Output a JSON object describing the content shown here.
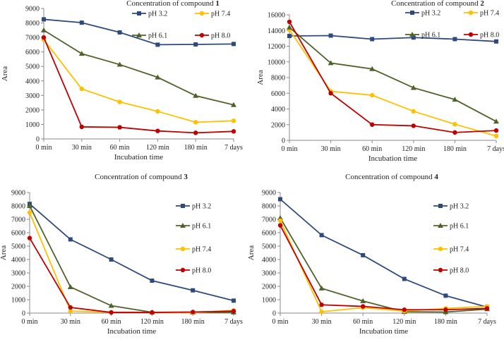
{
  "chart_data": [
    {
      "type": "line",
      "title": "Concentration of compound ",
      "title_bold": "1",
      "xlabel": "Incubation time",
      "ylabel": "Area",
      "categories": [
        "0 min",
        "30 min",
        "60 min",
        "120 min",
        "180 min",
        "7 days"
      ],
      "ylim": [
        0,
        9000
      ],
      "yticks": [
        0,
        1000,
        2000,
        3000,
        4000,
        5000,
        6000,
        7000,
        8000,
        9000
      ],
      "grid": false,
      "legend_placement": "top-right",
      "series": [
        {
          "name": "pH 3.2",
          "color": "#2e4a7d",
          "marker": "square",
          "values": [
            8250,
            8020,
            7350,
            6500,
            6520,
            6550
          ]
        },
        {
          "name": "pH 7.4",
          "color": "#ffc000",
          "marker": "circle",
          "values": [
            6850,
            3450,
            2550,
            1900,
            1150,
            1250
          ]
        },
        {
          "name": "pH 6.1",
          "color": "#4f6228",
          "marker": "triangle",
          "values": [
            7500,
            5880,
            5130,
            4250,
            2980,
            2350
          ]
        },
        {
          "name": "pH 8.0",
          "color": "#c00000",
          "marker": "circle",
          "values": [
            7000,
            830,
            800,
            550,
            420,
            520
          ]
        }
      ]
    },
    {
      "type": "line",
      "title": "Concentration of compound ",
      "title_bold": "2",
      "xlabel": "Incubation time",
      "ylabel": "Area",
      "categories": [
        "0 min",
        "30 min",
        "60 min",
        "120 min",
        "180 min",
        "7 days"
      ],
      "ylim": [
        0,
        16000
      ],
      "yticks": [
        0,
        2000,
        4000,
        6000,
        8000,
        10000,
        12000,
        14000,
        16000
      ],
      "grid": false,
      "legend_placement": "top-right",
      "series": [
        {
          "name": "pH 3.2",
          "color": "#2e4a7d",
          "marker": "square",
          "values": [
            13300,
            13350,
            12900,
            13100,
            12900,
            12600
          ]
        },
        {
          "name": "pH 7.4",
          "color": "#ffc000",
          "marker": "circle",
          "values": [
            14100,
            6250,
            5750,
            3700,
            2050,
            550
          ]
        },
        {
          "name": "pH 6.1",
          "color": "#4f6228",
          "marker": "triangle",
          "values": [
            14400,
            9850,
            9100,
            6700,
            5200,
            2400
          ]
        },
        {
          "name": "pH 8.0",
          "color": "#c00000",
          "marker": "circle",
          "values": [
            15100,
            6000,
            2000,
            1850,
            1000,
            1250
          ]
        }
      ]
    },
    {
      "type": "line",
      "title": "Concentration of compound ",
      "title_bold": "3",
      "xlabel": "Incubation time",
      "ylabel": "Area",
      "categories": [
        "0 min",
        "30 min",
        "60 min",
        "120 min",
        "180 min",
        "7 days"
      ],
      "ylim": [
        0,
        9000
      ],
      "yticks": [
        0,
        1000,
        2000,
        3000,
        4000,
        5000,
        6000,
        7000,
        8000,
        9000
      ],
      "grid": false,
      "legend_placement": "right",
      "series": [
        {
          "name": "pH 3.2",
          "color": "#2e4a7d",
          "marker": "square",
          "values": [
            8150,
            5500,
            4000,
            2420,
            1700,
            930
          ]
        },
        {
          "name": "pH 6.1",
          "color": "#4f6228",
          "marker": "triangle",
          "values": [
            8000,
            1950,
            550,
            60,
            50,
            60
          ]
        },
        {
          "name": "pH 7.4",
          "color": "#ffc000",
          "marker": "circle",
          "values": [
            7500,
            150,
            60,
            40,
            30,
            200
          ]
        },
        {
          "name": "pH 8.0",
          "color": "#c00000",
          "marker": "circle",
          "values": [
            5600,
            420,
            50,
            50,
            80,
            150
          ]
        }
      ]
    },
    {
      "type": "line",
      "title": "Concentration of compound ",
      "title_bold": "4",
      "xlabel": "Incubation time",
      "ylabel": "Area",
      "categories": [
        "0 min",
        "30 min",
        "60 min",
        "120 min",
        "180 min",
        "7 days"
      ],
      "ylim": [
        0,
        9000
      ],
      "yticks": [
        0,
        1000,
        2000,
        3000,
        4000,
        5000,
        6000,
        7000,
        8000,
        9000
      ],
      "grid": false,
      "legend_placement": "right",
      "series": [
        {
          "name": "pH 3.2",
          "color": "#2e4a7d",
          "marker": "square",
          "values": [
            8500,
            5820,
            4320,
            2550,
            1300,
            450
          ]
        },
        {
          "name": "pH 6.1",
          "color": "#4f6228",
          "marker": "triangle",
          "values": [
            7100,
            1850,
            900,
            100,
            80,
            300
          ]
        },
        {
          "name": "pH 7.4",
          "color": "#ffc000",
          "marker": "circle",
          "values": [
            6900,
            100,
            400,
            150,
            350,
            500
          ]
        },
        {
          "name": "pH 8.0",
          "color": "#c00000",
          "marker": "circle",
          "values": [
            6550,
            620,
            500,
            250,
            250,
            350
          ]
        }
      ]
    }
  ]
}
